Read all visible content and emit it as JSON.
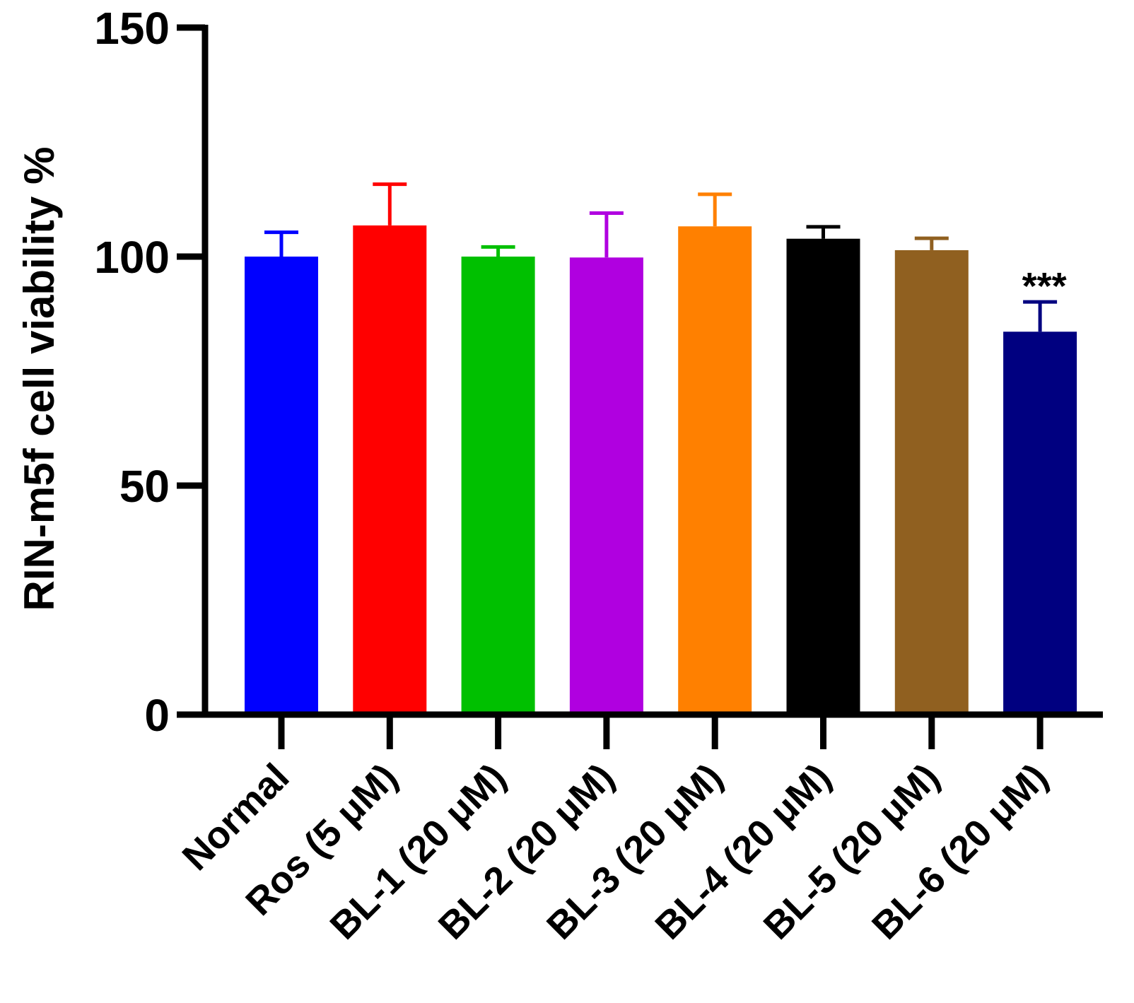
{
  "chart_data": {
    "type": "bar",
    "title": "",
    "xlabel": "",
    "ylabel": "RIN-m5f cell viability %",
    "ylim": [
      0,
      150
    ],
    "yticks": [
      "0",
      "50",
      "100",
      "150"
    ],
    "categories": [
      "Normal",
      "Ros (5 μM)",
      "BL-1 (20 μM)",
      "BL-2 (20 μM)",
      "BL-3 (20 μM)",
      "BL-4 (20 μM)",
      "BL-5 (20 μM)",
      "BL-6 (20 μM)"
    ],
    "values": [
      100,
      106.8,
      100,
      99.8,
      106.6,
      103.9,
      101.4,
      83.6
    ],
    "errors": [
      5.3,
      9,
      2.1,
      9.7,
      7,
      2.6,
      2.6,
      6.5
    ],
    "colors": [
      "#0000ff",
      "#ff0000",
      "#00c000",
      "#b000e0",
      "#ff8000",
      "#000000",
      "#906020",
      "#000080"
    ],
    "annotations": [
      {
        "category": "BL-6 (20 μM)",
        "text": "***"
      }
    ],
    "grid": false,
    "legend": "none"
  }
}
